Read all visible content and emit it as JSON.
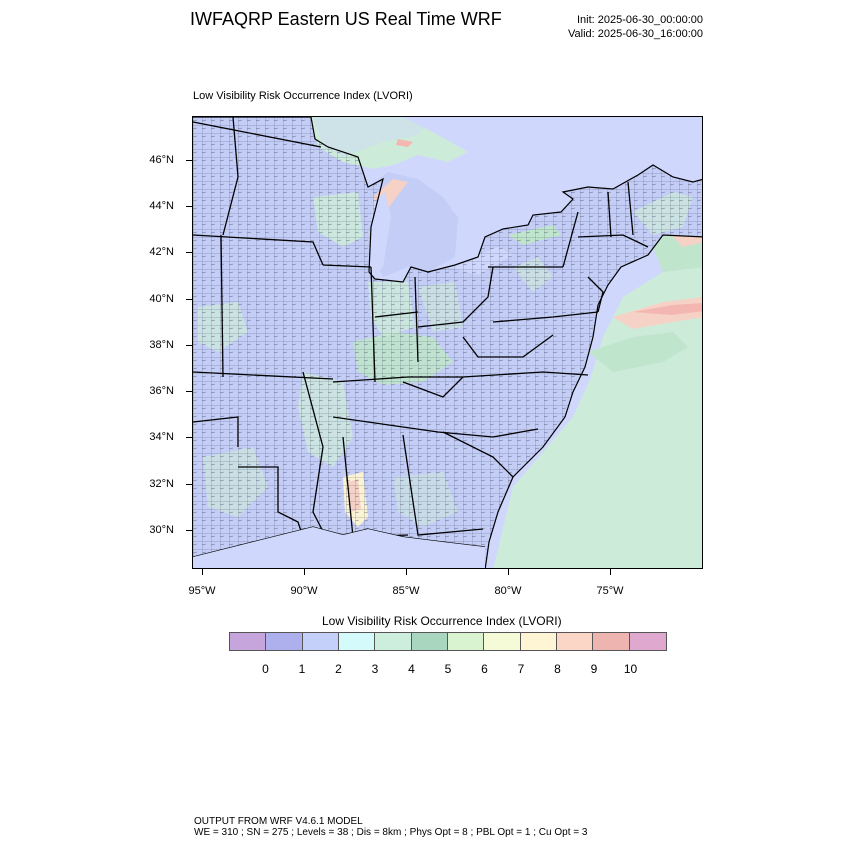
{
  "header": {
    "title": "IWFAQRP Eastern US Real Time WRF",
    "init": "Init: 2025-06-30_00:00:00",
    "valid": "Valid: 2025-06-30_16:00:00"
  },
  "map": {
    "subtitle": "Low Visibility Risk Occurrence Index   (LVORI)",
    "lat_labels": [
      "46°N",
      "44°N",
      "42°N",
      "40°N",
      "38°N",
      "36°N",
      "34°N",
      "32°N",
      "30°N"
    ],
    "lon_labels": [
      "95°W",
      "90°W",
      "85°W",
      "80°W",
      "75°W"
    ],
    "colors": {
      "ocean_lake_low": "#cfd8fc",
      "land_low": "#c3cdf6",
      "moderate": "#cdebd9",
      "moderate_green": "#bfe5cc",
      "high": "#f3b6b0",
      "very_high": "#f6d1c6",
      "elevated": "#fbf4d4"
    }
  },
  "colorbar": {
    "title": "Low Visibility Risk Occurrence Index  (LVORI)",
    "labels": [
      "0",
      "1",
      "2",
      "3",
      "4",
      "5",
      "6",
      "7",
      "8",
      "9",
      "10"
    ],
    "colors": [
      "#c6a5dc",
      "#aeb0ee",
      "#c4d0fa",
      "#d4fafb",
      "#cdeedd",
      "#a9d6bf",
      "#d9f2cf",
      "#f6fbd7",
      "#fef5d4",
      "#fbd6c7",
      "#eeb4b0",
      "#dea8cf"
    ]
  },
  "footer": {
    "line1": "OUTPUT FROM WRF V4.6.1 MODEL",
    "line2": "WE = 310 ; SN = 275 ; Levels = 38 ; Dis = 8km ; Phys Opt = 8 ; PBL Opt = 1 ; Cu Opt = 3"
  }
}
